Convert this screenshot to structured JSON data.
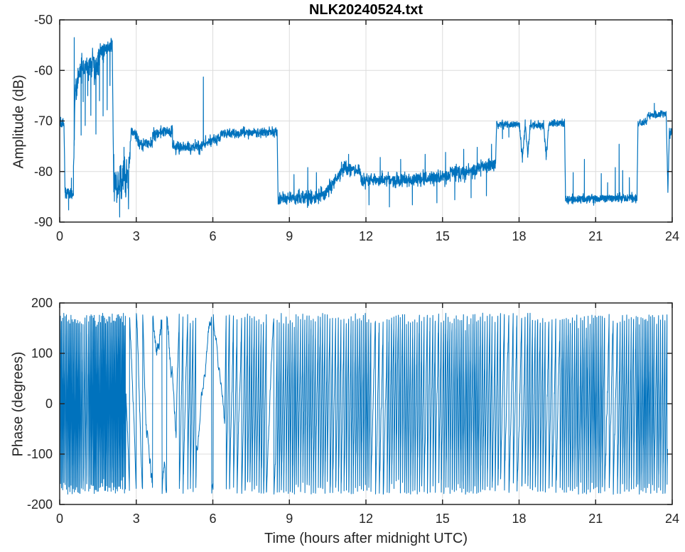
{
  "figure": {
    "background": "#ffffff",
    "axis_color": "#262626",
    "grid_color": "#dcdcdc",
    "line_color": "#0072BD"
  },
  "chart_data": [
    {
      "type": "line",
      "title": "NLK20240524.txt",
      "xlabel": "",
      "ylabel": "Amplitude (dB)",
      "xlim": [
        0,
        24
      ],
      "ylim": [
        -90,
        -50
      ],
      "xticks": [
        0,
        3,
        6,
        9,
        12,
        15,
        18,
        21,
        24
      ],
      "yticks": [
        -90,
        -80,
        -70,
        -60,
        -50
      ],
      "grid": true,
      "legend": null,
      "series": [
        {
          "name": "amplitude_db",
          "color": "#0072BD",
          "segments_format": "[t_start_h, t_end_h, dB_start, dB_end, noise_half_range_dB]",
          "segments": [
            [
              0.0,
              0.17,
              -70.5,
              -70.5,
              1.4
            ],
            [
              0.17,
              0.21,
              -71.0,
              -84.0,
              1.0
            ],
            [
              0.21,
              0.54,
              -84.0,
              -84.2,
              1.8
            ],
            [
              0.54,
              0.62,
              -79.0,
              -65.0,
              4.0
            ],
            [
              0.62,
              0.78,
              -63.5,
              -61.0,
              2.8
            ],
            [
              0.78,
              1.35,
              -60.0,
              -58.5,
              2.8
            ],
            [
              1.35,
              1.52,
              -60.5,
              -59.0,
              4.5
            ],
            [
              1.52,
              2.06,
              -56.8,
              -55.0,
              2.2
            ],
            [
              2.06,
              2.12,
              -55.0,
              -84.0,
              2.0
            ],
            [
              2.12,
              2.72,
              -81.5,
              -82.0,
              5.5
            ],
            [
              2.72,
              2.8,
              -79.0,
              -72.0,
              2.0
            ],
            [
              2.8,
              3.06,
              -72.0,
              -73.5,
              1.6
            ],
            [
              3.06,
              3.64,
              -74.6,
              -74.4,
              1.6
            ],
            [
              3.64,
              4.42,
              -72.6,
              -71.9,
              1.6
            ],
            [
              4.42,
              5.58,
              -75.0,
              -75.3,
              1.4
            ],
            [
              5.58,
              6.3,
              -74.6,
              -73.4,
              1.3
            ],
            [
              6.3,
              8.52,
              -72.5,
              -72.2,
              1.1
            ],
            [
              8.52,
              8.56,
              -72.3,
              -86.0,
              1.0
            ],
            [
              8.56,
              10.38,
              -85.4,
              -85.0,
              1.9
            ],
            [
              10.38,
              11.05,
              -84.6,
              -79.7,
              1.7
            ],
            [
              11.05,
              11.8,
              -79.4,
              -79.9,
              1.6
            ],
            [
              11.8,
              14.0,
              -81.7,
              -81.6,
              1.6
            ],
            [
              14.0,
              15.3,
              -81.5,
              -80.9,
              1.7
            ],
            [
              15.3,
              16.5,
              -80.4,
              -79.4,
              2.0
            ],
            [
              16.5,
              17.08,
              -79.1,
              -78.7,
              2.0
            ],
            [
              17.08,
              17.12,
              -78.0,
              -70.7,
              1.0
            ],
            [
              17.12,
              18.02,
              -70.7,
              -70.7,
              1.0
            ],
            [
              18.02,
              18.13,
              -70.7,
              -77.6,
              1.2
            ],
            [
              18.13,
              18.24,
              -77.6,
              -70.8,
              1.2
            ],
            [
              18.24,
              18.34,
              -70.8,
              -76.6,
              1.2
            ],
            [
              18.34,
              18.44,
              -76.6,
              -70.8,
              1.2
            ],
            [
              18.44,
              18.96,
              -70.9,
              -70.9,
              1.0
            ],
            [
              18.96,
              19.06,
              -70.9,
              -77.1,
              1.2
            ],
            [
              19.06,
              19.18,
              -77.1,
              -70.6,
              1.2
            ],
            [
              19.18,
              19.78,
              -70.5,
              -70.5,
              0.9
            ],
            [
              19.78,
              19.82,
              -70.5,
              -85.3,
              1.0
            ],
            [
              19.82,
              22.62,
              -85.5,
              -85.2,
              1.1
            ],
            [
              22.62,
              22.66,
              -85.0,
              -70.5,
              1.0
            ],
            [
              22.66,
              23.02,
              -70.4,
              -70.2,
              1.0
            ],
            [
              23.02,
              23.76,
              -68.9,
              -68.6,
              1.0
            ],
            [
              23.76,
              23.83,
              -68.9,
              -83.6,
              1.5
            ],
            [
              23.83,
              23.89,
              -83.6,
              -72.6,
              1.5
            ],
            [
              23.89,
              24.0,
              -72.9,
              -72.0,
              1.5
            ]
          ],
          "spikes_format": "[t_hours, dB_peak]",
          "spikes": [
            [
              0.35,
              -87.6
            ],
            [
              0.46,
              -81.3
            ],
            [
              0.57,
              -53.5
            ],
            [
              0.84,
              -72.8
            ],
            [
              0.92,
              -66.2
            ],
            [
              1.0,
              -70.9
            ],
            [
              1.1,
              -65.0
            ],
            [
              1.22,
              -68.9
            ],
            [
              1.42,
              -72.6
            ],
            [
              1.56,
              -66.0
            ],
            [
              1.7,
              -69.0
            ],
            [
              1.86,
              -67.8
            ],
            [
              1.97,
              -63.0
            ],
            [
              2.35,
              -89.0
            ],
            [
              2.52,
              -75.2
            ],
            [
              5.63,
              -61.3
            ],
            [
              9.18,
              -80.6
            ],
            [
              9.72,
              -79.2
            ],
            [
              10.06,
              -80.2
            ],
            [
              11.32,
              -76.6
            ],
            [
              12.12,
              -86.6
            ],
            [
              12.56,
              -77.2
            ],
            [
              12.92,
              -87.0
            ],
            [
              13.36,
              -77.6
            ],
            [
              13.82,
              -86.6
            ],
            [
              14.32,
              -76.6
            ],
            [
              14.78,
              -86.2
            ],
            [
              15.12,
              -76.2
            ],
            [
              15.48,
              -85.6
            ],
            [
              15.83,
              -75.6
            ],
            [
              16.12,
              -85.2
            ],
            [
              16.36,
              -75.2
            ],
            [
              16.72,
              -84.8
            ],
            [
              16.92,
              -74.6
            ],
            [
              17.35,
              -73.5
            ],
            [
              17.6,
              -73.2
            ],
            [
              20.12,
              -80.2
            ],
            [
              20.56,
              -77.6
            ],
            [
              21.22,
              -80.4
            ],
            [
              21.47,
              -82.2
            ],
            [
              21.77,
              -79.2
            ],
            [
              21.92,
              -74.6
            ],
            [
              22.06,
              -79.8
            ],
            [
              22.32,
              -81.2
            ],
            [
              23.3,
              -66.5
            ]
          ]
        }
      ]
    },
    {
      "type": "line",
      "title": "",
      "xlabel": "Time (hours after midnight UTC)",
      "ylabel": "Phase (degrees)",
      "xlim": [
        0,
        24
      ],
      "ylim": [
        -200,
        200
      ],
      "xticks": [
        0,
        3,
        6,
        9,
        12,
        15,
        18,
        21,
        24
      ],
      "yticks": [
        -200,
        -100,
        0,
        100,
        200
      ],
      "grid": true,
      "legend": null,
      "wrap_range": [
        -180,
        180
      ],
      "series": [
        {
          "name": "phase_degrees",
          "color": "#0072BD",
          "segments_format": "[t_start_h, t_end_h, wraps_per_hour_signed, jitter]",
          "segments": [
            [
              0.02,
              0.8,
              22.0,
              0.5
            ],
            [
              0.8,
              1.15,
              14.0,
              0.6
            ],
            [
              1.15,
              2.6,
              24.0,
              0.5
            ],
            [
              2.6,
              3.05,
              -3.5,
              0.35
            ],
            [
              3.05,
              3.38,
              -4.5,
              0.4
            ],
            [
              3.38,
              3.78,
              -1.3,
              0.8
            ],
            [
              3.78,
              4.12,
              1.1,
              0.8
            ],
            [
              4.12,
              4.56,
              -1.6,
              0.8
            ],
            [
              4.56,
              5.02,
              6.0,
              0.5
            ],
            [
              5.02,
              5.36,
              9.0,
              0.5
            ],
            [
              5.36,
              6.0,
              0.95,
              0.5
            ],
            [
              6.0,
              6.46,
              -1.15,
              0.5
            ],
            [
              6.46,
              7.2,
              7.0,
              0.5
            ],
            [
              7.2,
              8.1,
              11.0,
              0.5
            ],
            [
              8.1,
              8.46,
              3.2,
              0.4
            ],
            [
              8.46,
              10.5,
              12.0,
              0.5
            ],
            [
              10.5,
              11.4,
              9.0,
              0.5
            ],
            [
              11.4,
              12.2,
              13.0,
              0.5
            ],
            [
              12.2,
              12.8,
              6.0,
              0.5
            ],
            [
              12.8,
              14.2,
              12.0,
              0.5
            ],
            [
              14.2,
              15.0,
              9.0,
              0.5
            ],
            [
              15.0,
              16.6,
              13.0,
              0.5
            ],
            [
              16.6,
              17.3,
              10.0,
              0.5
            ],
            [
              17.3,
              18.2,
              6.0,
              0.5
            ],
            [
              18.2,
              19.0,
              11.0,
              0.5
            ],
            [
              19.0,
              19.6,
              7.0,
              0.6
            ],
            [
              19.6,
              20.4,
              12.0,
              0.5
            ],
            [
              20.4,
              21.3,
              14.0,
              0.5
            ],
            [
              21.3,
              21.9,
              6.0,
              0.6
            ],
            [
              21.9,
              22.6,
              12.0,
              0.5
            ],
            [
              22.6,
              23.3,
              16.0,
              0.5
            ],
            [
              23.3,
              23.82,
              12.0,
              0.5
            ]
          ]
        }
      ]
    }
  ]
}
